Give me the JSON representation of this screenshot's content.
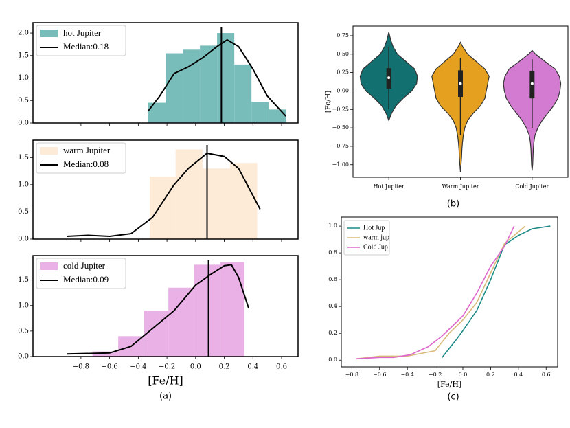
{
  "chart_data": [
    {
      "type": "histogram",
      "name": "hot Jupiter",
      "color": "#79bdbb",
      "bins": [
        -0.33,
        -0.21,
        -0.09,
        0.03,
        0.15,
        0.27,
        0.39,
        0.51,
        0.63
      ],
      "counts": [
        0.45,
        1.55,
        1.63,
        1.72,
        2.0,
        1.3,
        0.47,
        0.3
      ],
      "kde": {
        "x": [
          -0.33,
          -0.25,
          -0.15,
          -0.05,
          0.05,
          0.15,
          0.22,
          0.3,
          0.4,
          0.5,
          0.63
        ],
        "y": [
          0.27,
          0.6,
          1.1,
          1.25,
          1.45,
          1.7,
          1.85,
          1.7,
          1.2,
          0.6,
          0.15
        ]
      },
      "median": {
        "name": "Median:0.18",
        "value": 0.18
      },
      "xlim": [
        -1.135,
        0.715
      ],
      "ylim": [
        0,
        2.23
      ],
      "yticks": [
        {
          "value": 0,
          "label": "0.0"
        },
        0.5,
        {
          "value": 1,
          "label": "1.0"
        },
        1.5,
        {
          "value": 2,
          "label": "2.0"
        }
      ]
    },
    {
      "type": "histogram",
      "name": "warm Jupiter",
      "color": "#fdebd7",
      "bins": [
        -0.32,
        -0.14,
        0.05,
        0.24,
        0.43
      ],
      "counts": [
        1.15,
        1.65,
        1.3,
        1.4
      ],
      "kde": {
        "x": [
          -0.9,
          -0.75,
          -0.6,
          -0.45,
          -0.3,
          -0.15,
          -0.05,
          0.08,
          0.2,
          0.3,
          0.45
        ],
        "y": [
          0.05,
          0.07,
          0.05,
          0.1,
          0.4,
          1.0,
          1.3,
          1.58,
          1.52,
          1.3,
          0.55
        ]
      },
      "median": {
        "name": "Median:0.08",
        "value": 0.08
      },
      "xlim": [
        -1.135,
        0.715
      ],
      "ylim": [
        0,
        1.82
      ],
      "yticks": [
        {
          "value": 0,
          "label": "0.0"
        },
        0.5,
        {
          "value": 1,
          "label": "1.0"
        },
        1.5
      ]
    },
    {
      "type": "histogram",
      "name": "cold Jupiter",
      "color": "#e9b1e6",
      "bins": [
        -0.72,
        -0.54,
        -0.36,
        -0.19,
        -0.01,
        0.17,
        0.34
      ],
      "counts": [
        0.1,
        0.4,
        0.9,
        1.35,
        1.8,
        1.85
      ],
      "kde": {
        "x": [
          -0.9,
          -0.6,
          -0.45,
          -0.3,
          -0.15,
          0.0,
          0.1,
          0.2,
          0.25,
          0.3,
          0.37
        ],
        "y": [
          0.05,
          0.07,
          0.2,
          0.55,
          0.9,
          1.4,
          1.6,
          1.78,
          1.8,
          1.55,
          0.95
        ]
      },
      "median": {
        "name": "Median:0.09",
        "value": 0.09
      },
      "xlim": [
        -1.135,
        0.715
      ],
      "ylim": [
        0,
        1.98
      ],
      "xticks": [
        {
          "value": -0.8,
          "label": "−0.8"
        },
        {
          "value": -0.6,
          "label": "−0.6"
        },
        {
          "value": -0.4,
          "label": "−0.4"
        },
        {
          "value": -0.2,
          "label": "−0.2"
        },
        {
          "value": 0,
          "label": "0.0"
        },
        0.2,
        0.4,
        0.6
      ],
      "yticks": [
        {
          "value": 0,
          "label": "0.0"
        },
        0.5,
        {
          "value": 1,
          "label": "1.0"
        },
        1.5
      ],
      "xlabel": "[Fe/H]",
      "caption": "(a)"
    },
    {
      "type": "violin",
      "ylabel": "[Fe/H]",
      "caption": "(b)",
      "categories": [
        "Hot Jupiter",
        "Warm Jupiter",
        "Cold Jupiter"
      ],
      "ylim": [
        -1.17,
        0.88
      ],
      "yticks": [
        {
          "value": -1,
          "label": "−1.00"
        },
        {
          "value": -0.75,
          "label": "−0.75"
        },
        {
          "value": -0.5,
          "label": "−0.50"
        },
        {
          "value": -0.25,
          "label": "−0.25"
        },
        {
          "value": 0,
          "label": "0.00"
        },
        0.25,
        {
          "value": 0.5,
          "label": "0.50"
        },
        0.75
      ],
      "violins": [
        {
          "color": "#137070",
          "whislo": -0.25,
          "q1": 0.03,
          "median": 0.18,
          "q3": 0.31,
          "whishi": 0.6,
          "shape": {
            "y": [
              -0.4,
              -0.3,
              -0.2,
              -0.1,
              0,
              0.1,
              0.2,
              0.3,
              0.4,
              0.5,
              0.6,
              0.7,
              0.8
            ],
            "width": [
              0,
              0.1,
              0.25,
              0.5,
              0.8,
              0.97,
              1,
              0.9,
              0.6,
              0.3,
              0.15,
              0.06,
              0
            ]
          }
        },
        {
          "color": "#e5a020",
          "whislo": -0.6,
          "q1": -0.08,
          "median": 0.1,
          "q3": 0.28,
          "whishi": 0.45,
          "shape": {
            "y": [
              -1.1,
              -1.0,
              -0.9,
              -0.8,
              -0.7,
              -0.6,
              -0.5,
              -0.4,
              -0.3,
              -0.2,
              -0.1,
              0,
              0.1,
              0.2,
              0.3,
              0.4,
              0.5,
              0.6,
              0.66
            ],
            "width": [
              0,
              0.02,
              0.04,
              0.05,
              0.07,
              0.1,
              0.15,
              0.25,
              0.45,
              0.7,
              0.85,
              0.9,
              0.95,
              1.0,
              0.85,
              0.55,
              0.25,
              0.08,
              0
            ]
          }
        },
        {
          "color": "#d37bd0",
          "whislo": -0.5,
          "q1": -0.1,
          "median": 0.1,
          "q3": 0.27,
          "whishi": 0.43,
          "shape": {
            "y": [
              -1.08,
              -1.0,
              -0.9,
              -0.8,
              -0.7,
              -0.6,
              -0.5,
              -0.4,
              -0.3,
              -0.2,
              -0.1,
              0,
              0.1,
              0.2,
              0.3,
              0.4,
              0.5,
              0.55
            ],
            "width": [
              0,
              0.02,
              0.03,
              0.04,
              0.06,
              0.1,
              0.2,
              0.35,
              0.55,
              0.75,
              0.9,
              0.97,
              1.0,
              0.95,
              0.8,
              0.45,
              0.12,
              0
            ]
          }
        }
      ]
    },
    {
      "type": "line",
      "xlabel": "[Fe/H]",
      "caption": "(c)",
      "xlim": [
        -0.876,
        0.683
      ],
      "ylim": [
        -0.05,
        1.067
      ],
      "xticks": [
        {
          "value": -0.8,
          "label": "−0.8"
        },
        {
          "value": -0.6,
          "label": "−0.6"
        },
        {
          "value": -0.4,
          "label": "−0.4"
        },
        {
          "value": -0.2,
          "label": "−0.2"
        },
        {
          "value": 0,
          "label": "0.0"
        },
        0.2,
        0.4,
        0.6
      ],
      "yticks": [
        {
          "value": 0,
          "label": "0.0"
        },
        0.2,
        0.4,
        0.6,
        0.8,
        {
          "value": 1,
          "label": "1.0"
        }
      ],
      "series": [
        {
          "name": "Hot Jup",
          "color": "#1a8a86",
          "x": [
            -0.15,
            -0.05,
            0.0,
            0.1,
            0.2,
            0.3,
            0.4,
            0.5,
            0.63
          ],
          "values": [
            0.02,
            0.15,
            0.22,
            0.37,
            0.6,
            0.86,
            0.93,
            0.98,
            1.0
          ]
        },
        {
          "name": "warm jup",
          "color": "#d9b97a",
          "x": [
            -0.77,
            -0.6,
            -0.4,
            -0.2,
            -0.1,
            0.0,
            0.1,
            0.2,
            0.3,
            0.45
          ],
          "values": [
            0.01,
            0.03,
            0.03,
            0.07,
            0.2,
            0.3,
            0.43,
            0.65,
            0.87,
            1.0
          ]
        },
        {
          "name": "Cold Jup",
          "color": "#dd66cc",
          "x": [
            -0.77,
            -0.6,
            -0.5,
            -0.38,
            -0.25,
            -0.15,
            0.0,
            0.1,
            0.2,
            0.3,
            0.37
          ],
          "values": [
            0.01,
            0.02,
            0.02,
            0.04,
            0.1,
            0.18,
            0.33,
            0.5,
            0.7,
            0.85,
            1.0
          ]
        }
      ]
    }
  ]
}
